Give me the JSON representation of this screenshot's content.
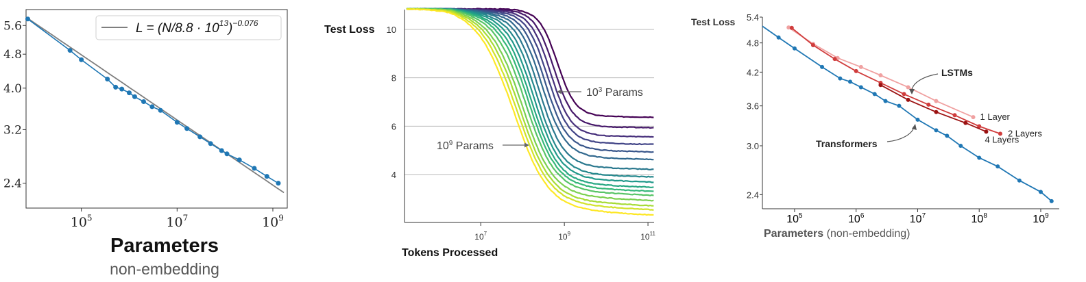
{
  "chart_data": [
    {
      "type": "line",
      "xscale": "log",
      "yscale": "log",
      "xlim": [
        7000,
        2000000000
      ],
      "ylim": [
        2.1,
        6.1
      ],
      "xticks": [
        100000,
        10000000,
        1000000000
      ],
      "xtick_base": "10",
      "xtick_exps": [
        "5",
        "7",
        "9"
      ],
      "yticks": [
        "5.6",
        "4.8",
        "4.0",
        "3.2",
        "2.4"
      ],
      "ytick_values": [
        5.6,
        4.8,
        4.0,
        3.2,
        2.4
      ],
      "xlabel": "Parameters",
      "xlabel_sub": "non-embedding",
      "legend_position": "top-right",
      "legend": {
        "prefix": "L = (N/8.8 · 10",
        "exp1": "13",
        "mid": ")",
        "exp2": "−0.076"
      },
      "fit": {
        "scale": 88000000000000.0,
        "alpha": 0.076,
        "x_range": [
          7600,
          1700000000
        ]
      },
      "series": [
        {
          "x": [
            7600,
            58000,
            100000,
            350000,
            520000,
            700000,
            1000000,
            1300000,
            2000000,
            3000000,
            4500000,
            10000000,
            16000000,
            30000000,
            50000000,
            85000000,
            110000000,
            200000000,
            410000000,
            750000000,
            1300000000
          ],
          "y": [
            5.8,
            4.9,
            4.66,
            4.2,
            4.02,
            3.98,
            3.9,
            3.82,
            3.72,
            3.62,
            3.55,
            3.33,
            3.22,
            3.08,
            2.97,
            2.86,
            2.81,
            2.72,
            2.6,
            2.49,
            2.4
          ]
        }
      ],
      "color": "#1f77b4"
    },
    {
      "type": "line",
      "xscale": "log",
      "xlim": [
        150000,
        140000000000
      ],
      "ylim": [
        2.2,
        10.9
      ],
      "xticks": [
        10000000,
        1000000000,
        100000000000
      ],
      "xtick_base": "10",
      "xtick_exps": [
        "7",
        "9",
        "11"
      ],
      "yticks": [
        4,
        6,
        8,
        10
      ],
      "ylabel": "Test Loss",
      "xlabel": "Tokens Processed",
      "grid": true,
      "annotations": [
        {
          "base": "10",
          "exp": "3",
          "rest": " Params"
        },
        {
          "base": "10",
          "exp": "9",
          "rest": " Params"
        }
      ],
      "colormap": "viridis",
      "series_count": 16,
      "series_plateaus": [
        6.4,
        5.97,
        5.6,
        5.3,
        5.0,
        4.7,
        4.3,
        4.0,
        3.8,
        3.6,
        3.45,
        3.3,
        3.1,
        2.9,
        2.75,
        2.55
      ],
      "drop_midpoints": [
        680000000,
        560000000,
        470000000,
        400000000,
        340000000,
        290000000,
        250000000,
        215000000,
        185000000,
        160000000,
        140000000,
        120000000,
        100000000,
        87000000,
        75000000,
        65000000
      ]
    },
    {
      "type": "line",
      "xscale": "log",
      "yscale": "log",
      "xlim": [
        30000,
        2000000000
      ],
      "ylim": [
        2.25,
        5.4
      ],
      "xticks": [
        100000,
        1000000,
        10000000,
        100000000,
        1000000000
      ],
      "xtick_base": "10",
      "xtick_exps": [
        "5",
        "6",
        "7",
        "8",
        "9"
      ],
      "yticks": [
        "5.4",
        "4.8",
        "4.2",
        "3.6",
        "3.0",
        "2.4"
      ],
      "ytick_values": [
        5.4,
        4.8,
        4.2,
        3.6,
        3.0,
        2.4
      ],
      "ylabel": "Test Loss",
      "xlabel": "Parameters",
      "xlabel_sub": "(non-embedding)",
      "annotations": [
        "LSTMs",
        "Transformers"
      ],
      "series": [
        {
          "name": "Transformers",
          "color": "#1f77b4",
          "x": [
            55000,
            100000,
            280000,
            550000,
            800000,
            1200000,
            2000000,
            3000000,
            5000000,
            10000000,
            20000000,
            30000000,
            50000000,
            100000000,
            200000000,
            450000000,
            1000000000,
            1500000000
          ],
          "y": [
            4.92,
            4.68,
            4.3,
            4.08,
            4.02,
            3.92,
            3.8,
            3.68,
            3.6,
            3.38,
            3.22,
            3.14,
            3.0,
            2.84,
            2.73,
            2.56,
            2.43,
            2.33
          ]
        },
        {
          "name": "1 Layer",
          "color": "#f0a1a1",
          "x": [
            80000,
            200000,
            500000,
            1200000,
            2500000,
            7000000,
            20000000,
            80000000
          ],
          "y": [
            5.15,
            4.78,
            4.48,
            4.3,
            4.14,
            3.92,
            3.68,
            3.42
          ]
        },
        {
          "name": "2 Layers",
          "color": "#d03c3c",
          "x": [
            90000,
            200000,
            450000,
            1000000,
            2500000,
            6000000,
            15000000,
            40000000,
            100000000,
            220000000
          ],
          "y": [
            5.14,
            4.75,
            4.46,
            4.22,
            4.0,
            3.8,
            3.62,
            3.45,
            3.28,
            3.17
          ]
        },
        {
          "name": "4 Layers",
          "color": "#9b1111",
          "x": [
            2500000,
            7000000,
            20000000,
            60000000,
            130000000
          ],
          "y": [
            3.96,
            3.7,
            3.5,
            3.33,
            3.2
          ]
        }
      ]
    }
  ]
}
